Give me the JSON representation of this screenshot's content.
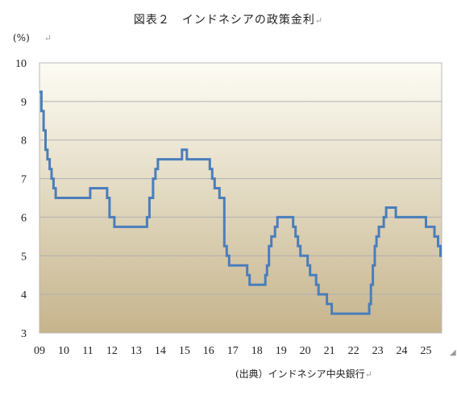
{
  "chart_data": {
    "type": "line",
    "title": "図表２　インドネシアの政策金利",
    "title_mark": "↵",
    "unit_label": "(%)",
    "unit_mark": "↵",
    "source": "(出典）インドネシア中央銀行",
    "source_mark": "↵",
    "ylim": [
      3,
      10
    ],
    "yticks": [
      3,
      4,
      5,
      6,
      7,
      8,
      9,
      10
    ],
    "xlim": [
      2009.0,
      2025.65
    ],
    "xticks": [
      {
        "x": 2009,
        "label": "09"
      },
      {
        "x": 2010,
        "label": "10"
      },
      {
        "x": 2011,
        "label": "11"
      },
      {
        "x": 2012,
        "label": "12"
      },
      {
        "x": 2013,
        "label": "13"
      },
      {
        "x": 2014,
        "label": "14"
      },
      {
        "x": 2015,
        "label": "15"
      },
      {
        "x": 2016,
        "label": "16"
      },
      {
        "x": 2017,
        "label": "17"
      },
      {
        "x": 2018,
        "label": "18"
      },
      {
        "x": 2019,
        "label": "19"
      },
      {
        "x": 2020,
        "label": "20"
      },
      {
        "x": 2021,
        "label": "21"
      },
      {
        "x": 2022,
        "label": "22"
      },
      {
        "x": 2023,
        "label": "23"
      },
      {
        "x": 2024,
        "label": "24"
      },
      {
        "x": 2025,
        "label": "25"
      }
    ],
    "grid": "horizontal",
    "line_color": "#4a7ebb",
    "background_gradient": [
      "#fdfcf4",
      "#c6b48c"
    ],
    "step": true,
    "series": [
      {
        "points": [
          [
            2009.0,
            9.25
          ],
          [
            2009.08,
            8.75
          ],
          [
            2009.17,
            8.25
          ],
          [
            2009.25,
            7.75
          ],
          [
            2009.33,
            7.5
          ],
          [
            2009.42,
            7.25
          ],
          [
            2009.5,
            7.0
          ],
          [
            2009.58,
            6.75
          ],
          [
            2009.67,
            6.5
          ],
          [
            2011.1,
            6.75
          ],
          [
            2011.8,
            6.5
          ],
          [
            2011.9,
            6.0
          ],
          [
            2012.1,
            5.75
          ],
          [
            2013.45,
            6.0
          ],
          [
            2013.55,
            6.5
          ],
          [
            2013.7,
            7.0
          ],
          [
            2013.8,
            7.25
          ],
          [
            2013.9,
            7.5
          ],
          [
            2014.9,
            7.75
          ],
          [
            2015.1,
            7.5
          ],
          [
            2016.05,
            7.25
          ],
          [
            2016.15,
            7.0
          ],
          [
            2016.25,
            6.75
          ],
          [
            2016.45,
            6.5
          ],
          [
            2016.65,
            5.25
          ],
          [
            2016.75,
            5.0
          ],
          [
            2016.85,
            4.75
          ],
          [
            2017.6,
            4.5
          ],
          [
            2017.7,
            4.25
          ],
          [
            2018.35,
            4.5
          ],
          [
            2018.42,
            4.75
          ],
          [
            2018.5,
            5.25
          ],
          [
            2018.6,
            5.5
          ],
          [
            2018.75,
            5.75
          ],
          [
            2018.85,
            6.0
          ],
          [
            2019.5,
            5.75
          ],
          [
            2019.6,
            5.5
          ],
          [
            2019.7,
            5.25
          ],
          [
            2019.8,
            5.0
          ],
          [
            2020.1,
            4.75
          ],
          [
            2020.2,
            4.5
          ],
          [
            2020.45,
            4.25
          ],
          [
            2020.55,
            4.0
          ],
          [
            2020.9,
            3.75
          ],
          [
            2021.1,
            3.5
          ],
          [
            2022.65,
            3.75
          ],
          [
            2022.72,
            4.25
          ],
          [
            2022.8,
            4.75
          ],
          [
            2022.88,
            5.25
          ],
          [
            2022.95,
            5.5
          ],
          [
            2023.05,
            5.75
          ],
          [
            2023.25,
            6.0
          ],
          [
            2023.35,
            6.25
          ],
          [
            2023.75,
            6.0
          ],
          [
            2025.0,
            5.75
          ],
          [
            2025.35,
            5.5
          ],
          [
            2025.5,
            5.25
          ],
          [
            2025.6,
            5.0
          ],
          [
            2025.65,
            5.0
          ]
        ]
      }
    ]
  }
}
